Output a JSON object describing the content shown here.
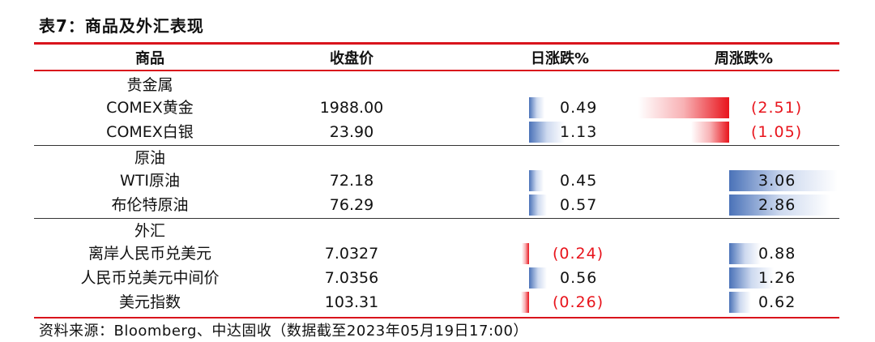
{
  "title": "表7：商品及外汇表现",
  "headers": {
    "name": "商品",
    "close": "收盘价",
    "day": "日涨跌%",
    "week": "周涨跌%"
  },
  "groups": [
    {
      "label": "贵金属",
      "rows": [
        {
          "name": "COMEX黄金",
          "close": "1988.00",
          "day": "0.49",
          "day_value": 0.49,
          "week": "(2.51)",
          "week_value": -2.51
        },
        {
          "name": "COMEX白银",
          "close": "23.90",
          "day": "1.13",
          "day_value": 1.13,
          "week": "(1.05)",
          "week_value": -1.05
        }
      ]
    },
    {
      "label": "原油",
      "rows": [
        {
          "name": "WTI原油",
          "close": "72.18",
          "day": "0.45",
          "day_value": 0.45,
          "week": "3.06",
          "week_value": 3.06
        },
        {
          "name": "布伦特原油",
          "close": "76.29",
          "day": "0.57",
          "day_value": 0.57,
          "week": "2.86",
          "week_value": 2.86
        }
      ]
    },
    {
      "label": "外汇",
      "rows": [
        {
          "name": "离岸人民币兑美元",
          "close": "7.0327",
          "day": "(0.24)",
          "day_value": -0.24,
          "week": "0.88",
          "week_value": 0.88
        },
        {
          "name": "人民币兑美元中间价",
          "close": "7.0356",
          "day": "0.56",
          "day_value": 0.56,
          "week": "1.26",
          "week_value": 1.26
        },
        {
          "name": "美元指数",
          "close": "103.31",
          "day": "(0.26)",
          "day_value": -0.26,
          "week": "0.62",
          "week_value": 0.62
        }
      ]
    }
  ],
  "source": "资料来源：Bloomberg、中达固收（数据截至2023年05月19日17:00）",
  "colors": {
    "positive": "#4a72b8",
    "negative": "#e8141c",
    "rule": "#d9141c"
  }
}
